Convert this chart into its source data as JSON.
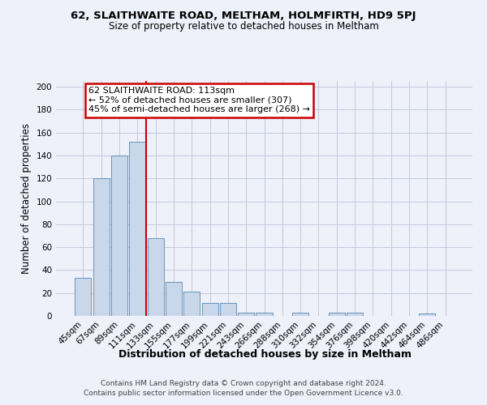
{
  "title1": "62, SLAITHWAITE ROAD, MELTHAM, HOLMFIRTH, HD9 5PJ",
  "title2": "Size of property relative to detached houses in Meltham",
  "xlabel": "Distribution of detached houses by size in Meltham",
  "ylabel": "Number of detached properties",
  "footer1": "Contains HM Land Registry data © Crown copyright and database right 2024.",
  "footer2": "Contains public sector information licensed under the Open Government Licence v3.0.",
  "categories": [
    "45sqm",
    "67sqm",
    "89sqm",
    "111sqm",
    "133sqm",
    "155sqm",
    "177sqm",
    "199sqm",
    "221sqm",
    "243sqm",
    "266sqm",
    "288sqm",
    "310sqm",
    "332sqm",
    "354sqm",
    "376sqm",
    "398sqm",
    "420sqm",
    "442sqm",
    "464sqm",
    "486sqm"
  ],
  "values": [
    33,
    120,
    140,
    152,
    68,
    30,
    21,
    11,
    11,
    3,
    3,
    0,
    3,
    0,
    3,
    3,
    0,
    0,
    0,
    2,
    0
  ],
  "bar_color": "#c8d8ea",
  "bar_edge_color": "#5888b0",
  "vline_color": "#cc0000",
  "vline_index": 3.5,
  "annotation_line1": "62 SLAITHWAITE ROAD: 113sqm",
  "annotation_line2": "← 52% of detached houses are smaller (307)",
  "annotation_line3": "45% of semi-detached houses are larger (268) →",
  "annotation_box_facecolor": "#ffffff",
  "annotation_box_edgecolor": "#cc0000",
  "ylim": [
    0,
    205
  ],
  "yticks": [
    0,
    20,
    40,
    60,
    80,
    100,
    120,
    140,
    160,
    180,
    200
  ],
  "background_color": "#eef0fa",
  "grid_color": "#c5c8dc",
  "title1_fontsize": 9.5,
  "title2_fontsize": 8.5,
  "ylabel_fontsize": 8.5,
  "xlabel_fontsize": 9,
  "tick_fontsize": 7.5,
  "annotation_fontsize": 8.0,
  "footer_fontsize": 6.5
}
